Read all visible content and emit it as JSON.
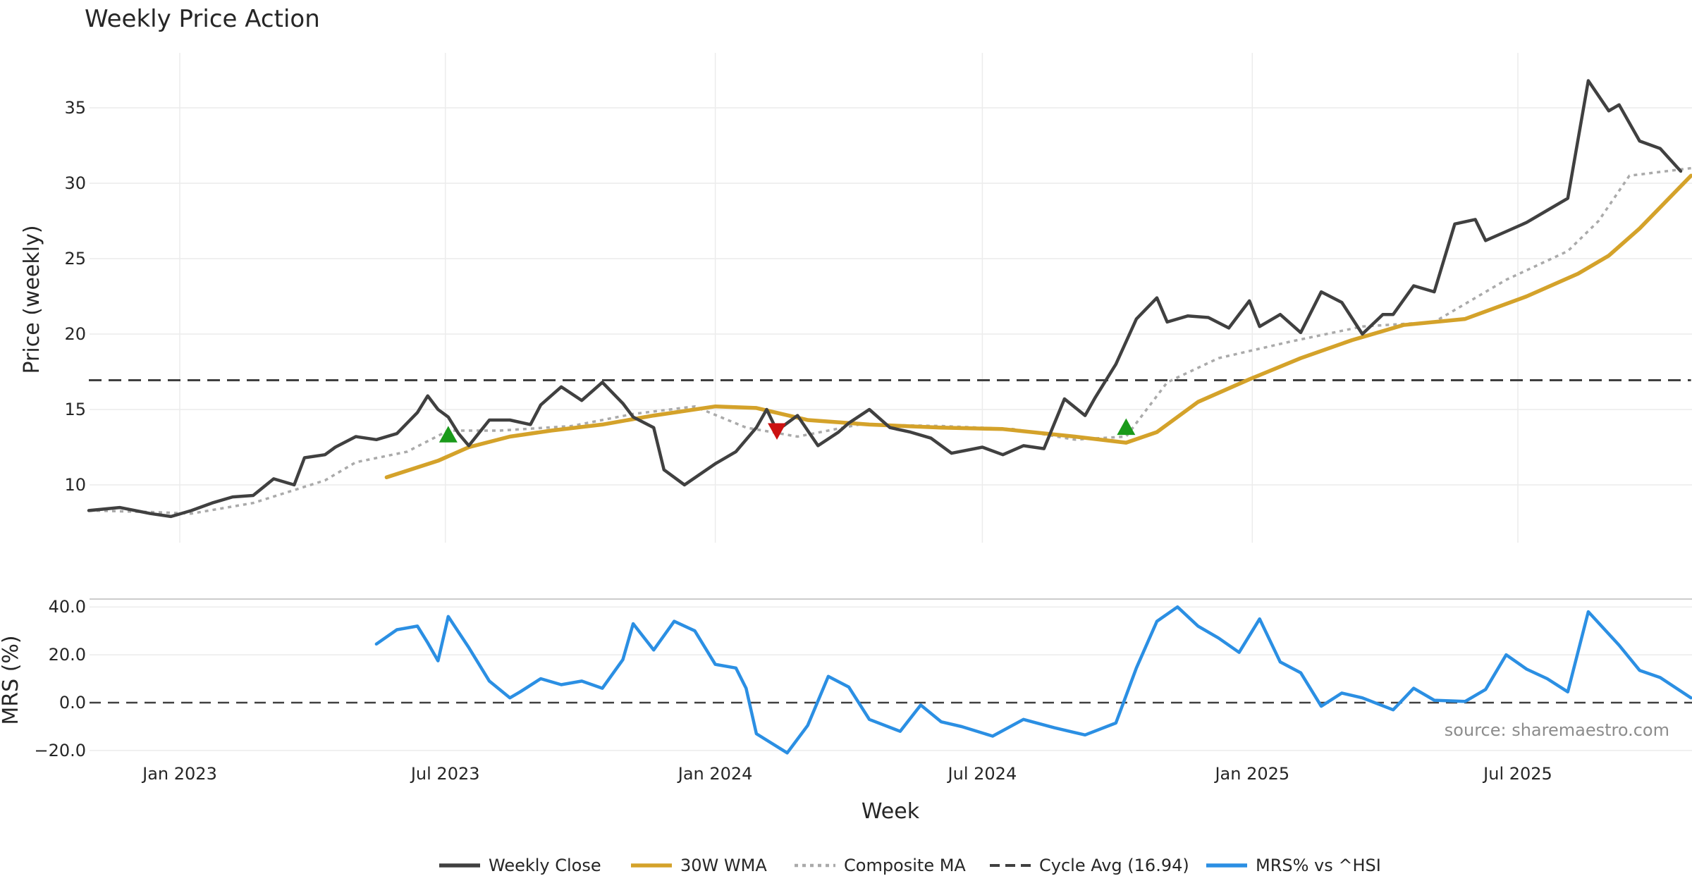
{
  "chart_data": [
    {
      "type": "line",
      "title": "Weekly Price Action",
      "xlabel": "",
      "ylabel": "Price (weekly)",
      "ylim": [
        7,
        38
      ],
      "yticks": [
        10,
        15,
        20,
        25,
        30,
        35
      ],
      "grid": true,
      "cycle_avg": 16.94,
      "series": [
        {
          "name": "Weekly Close",
          "color": "#404040",
          "x": [
            "2022-10-31",
            "2022-11-21",
            "2022-12-12",
            "2022-12-26",
            "2023-01-09",
            "2023-01-23",
            "2023-02-06",
            "2023-02-20",
            "2023-03-06",
            "2023-03-20",
            "2023-03-27",
            "2023-04-10",
            "2023-04-17",
            "2023-05-01",
            "2023-05-15",
            "2023-05-29",
            "2023-06-12",
            "2023-06-19",
            "2023-06-26",
            "2023-07-03",
            "2023-07-10",
            "2023-07-17",
            "2023-07-31",
            "2023-08-14",
            "2023-08-28",
            "2023-09-04",
            "2023-09-18",
            "2023-10-02",
            "2023-10-16",
            "2023-10-30",
            "2023-11-06",
            "2023-11-20",
            "2023-11-27",
            "2023-12-11",
            "2024-01-01",
            "2024-01-15",
            "2024-01-29",
            "2024-02-05",
            "2024-02-12",
            "2024-02-26",
            "2024-03-11",
            "2024-03-25",
            "2024-04-01",
            "2024-04-15",
            "2024-04-29",
            "2024-05-13",
            "2024-05-27",
            "2024-06-10",
            "2024-07-01",
            "2024-07-15",
            "2024-07-29",
            "2024-08-12",
            "2024-08-26",
            "2024-09-09",
            "2024-09-16",
            "2024-09-30",
            "2024-10-14",
            "2024-10-28",
            "2024-11-04",
            "2024-11-18",
            "2024-12-02",
            "2024-12-16",
            "2024-12-30",
            "2025-01-06",
            "2025-01-20",
            "2025-02-03",
            "2025-02-17",
            "2025-03-03",
            "2025-03-17",
            "2025-03-31",
            "2025-04-07",
            "2025-04-21",
            "2025-05-05",
            "2025-05-19",
            "2025-06-02",
            "2025-06-09",
            "2025-06-23",
            "2025-07-07",
            "2025-07-21",
            "2025-08-04",
            "2025-08-18",
            "2025-09-01",
            "2025-09-08",
            "2025-09-22",
            "2025-10-06",
            "2025-10-20"
          ],
          "values": [
            8.3,
            8.5,
            8.1,
            7.9,
            8.3,
            8.8,
            9.2,
            9.3,
            10.4,
            10.0,
            11.8,
            12.0,
            12.5,
            13.2,
            13.0,
            13.4,
            14.8,
            15.9,
            15.0,
            14.5,
            13.4,
            12.6,
            14.3,
            14.3,
            14.0,
            15.3,
            16.5,
            15.6,
            16.8,
            15.4,
            14.5,
            13.8,
            11.0,
            10.0,
            11.4,
            12.2,
            13.8,
            15.0,
            13.6,
            14.6,
            12.6,
            13.5,
            14.1,
            15.0,
            13.8,
            13.5,
            13.1,
            12.1,
            12.5,
            12.0,
            12.6,
            12.4,
            15.7,
            14.6,
            15.8,
            18.0,
            21.0,
            22.4,
            20.8,
            21.2,
            21.1,
            20.4,
            22.2,
            20.5,
            21.3,
            20.1,
            22.8,
            22.1,
            20.0,
            21.3,
            21.3,
            23.2,
            22.8,
            27.3,
            27.6,
            26.2,
            26.8,
            27.4,
            28.2,
            29.0,
            36.8,
            34.8,
            35.2,
            32.8,
            32.3,
            30.8
          ]
        },
        {
          "name": "30W WMA",
          "color": "#d4a22a",
          "x": [
            "2023-05-22",
            "2023-06-26",
            "2023-07-17",
            "2023-08-14",
            "2023-09-11",
            "2023-10-16",
            "2023-11-20",
            "2024-01-01",
            "2024-01-29",
            "2024-03-04",
            "2024-04-15",
            "2024-06-03",
            "2024-07-15",
            "2024-09-02",
            "2024-10-07",
            "2024-10-28",
            "2024-11-25",
            "2024-12-30",
            "2025-02-03",
            "2025-03-10",
            "2025-04-14",
            "2025-05-26",
            "2025-07-07",
            "2025-08-11",
            "2025-09-01",
            "2025-09-22",
            "2025-10-27"
          ],
          "values": [
            10.5,
            11.6,
            12.5,
            13.2,
            13.6,
            14.0,
            14.6,
            15.2,
            15.1,
            14.3,
            14.0,
            13.8,
            13.7,
            13.2,
            12.8,
            13.5,
            15.5,
            17.0,
            18.4,
            19.6,
            20.6,
            21.0,
            22.5,
            24.0,
            25.2,
            27.0,
            30.5
          ]
        },
        {
          "name": "Composite MA",
          "color": "#aaaaaa",
          "x": [
            "2022-10-31",
            "2022-12-12",
            "2023-01-09",
            "2023-02-20",
            "2023-04-10",
            "2023-05-01",
            "2023-06-05",
            "2023-07-03",
            "2023-08-07",
            "2023-09-25",
            "2023-11-06",
            "2023-12-18",
            "2024-01-22",
            "2024-02-26",
            "2024-04-08",
            "2024-06-03",
            "2024-07-22",
            "2024-09-02",
            "2024-10-07",
            "2024-11-04",
            "2024-12-09",
            "2025-01-27",
            "2025-03-17",
            "2025-05-05",
            "2025-06-23",
            "2025-08-04",
            "2025-08-25",
            "2025-09-15",
            "2025-10-27"
          ],
          "values": [
            8.3,
            8.2,
            8.1,
            8.8,
            10.3,
            11.5,
            12.2,
            13.6,
            13.6,
            13.9,
            14.7,
            15.2,
            13.8,
            13.2,
            14.0,
            13.9,
            13.7,
            13.0,
            13.2,
            16.8,
            18.4,
            19.5,
            20.5,
            20.8,
            23.6,
            25.5,
            27.5,
            30.5,
            31.0
          ]
        },
        {
          "name": "Cycle Avg (16.94)",
          "color": "#404040",
          "x": [
            "2022-10-31",
            "2025-10-27"
          ],
          "values": [
            16.94,
            16.94
          ]
        }
      ],
      "markers": [
        {
          "type": "buy",
          "x": "2023-07-03",
          "y": 13.3,
          "color": "#1a9a1a"
        },
        {
          "type": "sell",
          "x": "2024-02-12",
          "y": 13.6,
          "color": "#cc1111"
        },
        {
          "type": "buy",
          "x": "2024-10-07",
          "y": 13.8,
          "color": "#1a9a1a"
        }
      ]
    },
    {
      "type": "line",
      "title": "",
      "xlabel": "Week",
      "ylabel": "MRS (%)",
      "ylim": [
        -22,
        42
      ],
      "yticks": [
        "40.0",
        "20.0",
        "0.0",
        "−20.0"
      ],
      "ytick_values": [
        40,
        20,
        0,
        -20
      ],
      "xticks": [
        "Jan 2023",
        "Jul 2023",
        "Jan 2024",
        "Jul 2024",
        "Jan 2025",
        "Jul 2025"
      ],
      "xtick_dates": [
        "2023-01-01",
        "2023-07-01",
        "2024-01-01",
        "2024-07-01",
        "2025-01-01",
        "2025-07-01"
      ],
      "series": [
        {
          "name": "MRS% vs ^HSI",
          "color": "#2b8fe3",
          "x": [
            "2023-05-15",
            "2023-05-29",
            "2023-06-12",
            "2023-06-19",
            "2023-06-26",
            "2023-07-03",
            "2023-07-17",
            "2023-07-31",
            "2023-08-14",
            "2023-08-21",
            "2023-09-04",
            "2023-09-18",
            "2023-10-02",
            "2023-10-16",
            "2023-10-30",
            "2023-11-06",
            "2023-11-20",
            "2023-12-04",
            "2023-12-18",
            "2024-01-01",
            "2024-01-15",
            "2024-01-22",
            "2024-01-29",
            "2024-02-19",
            "2024-03-04",
            "2024-03-18",
            "2024-04-01",
            "2024-04-15",
            "2024-05-06",
            "2024-05-20",
            "2024-06-03",
            "2024-06-17",
            "2024-07-08",
            "2024-07-29",
            "2024-08-19",
            "2024-09-09",
            "2024-09-30",
            "2024-10-14",
            "2024-10-28",
            "2024-11-11",
            "2024-11-25",
            "2024-12-09",
            "2024-12-23",
            "2025-01-06",
            "2025-01-20",
            "2025-02-03",
            "2025-02-17",
            "2025-03-03",
            "2025-03-17",
            "2025-04-07",
            "2025-04-21",
            "2025-05-05",
            "2025-05-26",
            "2025-06-09",
            "2025-06-23",
            "2025-07-07",
            "2025-07-21",
            "2025-08-04",
            "2025-08-18",
            "2025-09-08",
            "2025-09-22",
            "2025-10-06",
            "2025-10-27"
          ],
          "values": [
            24.5,
            30.5,
            32.0,
            25.0,
            17.5,
            36.0,
            23.0,
            9.0,
            2.0,
            4.5,
            10.0,
            7.5,
            9.0,
            6.0,
            18.0,
            33.0,
            22.0,
            34.0,
            30.0,
            16.0,
            14.5,
            6.0,
            -13.0,
            -21.0,
            -9.5,
            11.0,
            6.5,
            -7.0,
            -12.0,
            -1.0,
            -8.0,
            -10.0,
            -14.0,
            -7.0,
            -10.5,
            -13.5,
            -8.5,
            14.5,
            34.0,
            40.0,
            32.0,
            27.0,
            21.0,
            35.0,
            17.0,
            12.5,
            -1.5,
            4.0,
            2.0,
            -3.0,
            6.0,
            1.0,
            0.5,
            5.5,
            20.0,
            14.0,
            10.0,
            4.5,
            38.0,
            24.0,
            13.5,
            10.5,
            2.0
          ]
        }
      ]
    }
  ],
  "source_text": "source: sharemaestro.com"
}
